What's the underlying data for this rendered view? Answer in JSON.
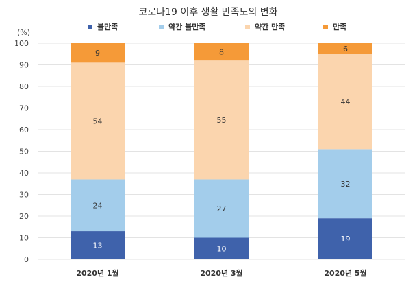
{
  "chart_data": {
    "type": "bar",
    "stacked": true,
    "title": "코로나19 이후 생활 만족도의 변화",
    "ylabel": "(%)",
    "xlabel": "",
    "ylim": [
      0,
      100
    ],
    "yticks": [
      0,
      10,
      20,
      30,
      40,
      50,
      60,
      70,
      80,
      90,
      100
    ],
    "grid": true,
    "legend_position": "top",
    "categories": [
      "2020년 1월",
      "2020년 3월",
      "2020년 5월"
    ],
    "series": [
      {
        "name": "불만족",
        "color": "#3f62ab",
        "values": [
          13,
          10,
          19
        ]
      },
      {
        "name": "약간 불만족",
        "color": "#a3cdeb",
        "values": [
          24,
          27,
          32
        ]
      },
      {
        "name": "약간 만족",
        "color": "#fbd5ae",
        "values": [
          54,
          55,
          44
        ]
      },
      {
        "name": "만족",
        "color": "#f59a38",
        "values": [
          9,
          8,
          6
        ]
      }
    ]
  }
}
